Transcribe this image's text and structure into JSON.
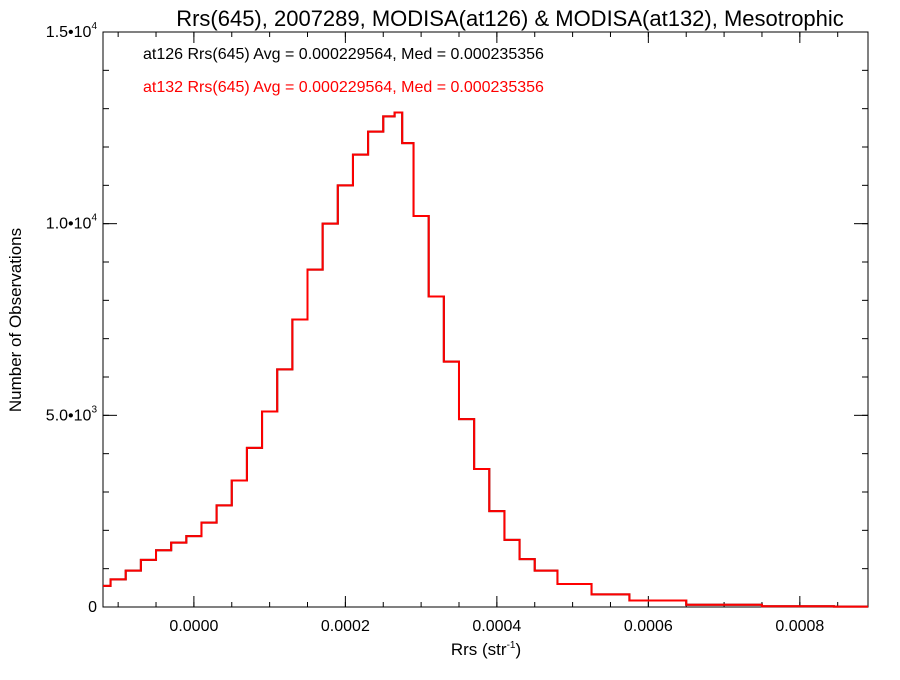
{
  "chart_data": {
    "type": "line",
    "title": "Rrs(645), 2007289, MODISA(at126) & MODISA(at132), Mesotrophic",
    "xlabel": {
      "base": "Rrs (str",
      "sup": "-1",
      "close": ")"
    },
    "ylabel": "Number of Observations",
    "xlim": [
      -0.00012,
      0.00089
    ],
    "ylim": [
      0,
      15000
    ],
    "x_ticks": [
      {
        "value": 0.0,
        "label": "0.0000"
      },
      {
        "value": 0.0002,
        "label": "0.0002"
      },
      {
        "value": 0.0004,
        "label": "0.0004"
      },
      {
        "value": 0.0006,
        "label": "0.0006"
      },
      {
        "value": 0.0008,
        "label": "0.0008"
      }
    ],
    "x_minor_step": 5e-05,
    "y_ticks": [
      {
        "value": 0,
        "base": "0",
        "sup": ""
      },
      {
        "value": 5000,
        "base": "5.0•10",
        "sup": "3"
      },
      {
        "value": 10000,
        "base": "1.0•10",
        "sup": "4"
      },
      {
        "value": 15000,
        "base": "1.5•10",
        "sup": "4"
      }
    ],
    "y_minor_step": 1000,
    "annotations": [
      {
        "text": "at126 Rrs(645) Avg = 0.000229564, Med = 0.000235356",
        "color": "#000000"
      },
      {
        "text": "at132 Rrs(645) Avg = 0.000229564, Med = 0.000235356",
        "color": "#ff0000"
      }
    ],
    "series": [
      {
        "name": "at126",
        "color": "#000000",
        "x": [
          -0.00012,
          -0.0001,
          -8e-05,
          -6e-05,
          -4e-05,
          -2e-05,
          0.0,
          2e-05,
          4e-05,
          6e-05,
          8e-05,
          0.0001,
          0.00012,
          0.00014,
          0.00016,
          0.00018,
          0.0002,
          0.00022,
          0.00024,
          0.00026,
          0.00027,
          0.00028,
          0.0003,
          0.00032,
          0.00034,
          0.00036,
          0.00038,
          0.0004,
          0.00042,
          0.00044,
          0.00046,
          0.0005,
          0.00055,
          0.0006,
          0.0007,
          0.0008,
          0.00089
        ],
        "y": [
          550,
          720,
          950,
          1230,
          1480,
          1680,
          1850,
          2200,
          2650,
          3300,
          4150,
          5100,
          6200,
          7500,
          8800,
          10000,
          11000,
          11800,
          12400,
          12800,
          12900,
          12100,
          10200,
          8100,
          6400,
          4900,
          3600,
          2500,
          1750,
          1250,
          950,
          600,
          330,
          170,
          60,
          20,
          10
        ]
      },
      {
        "name": "at132",
        "color": "#ff0000",
        "x": [
          -0.00012,
          -0.0001,
          -8e-05,
          -6e-05,
          -4e-05,
          -2e-05,
          0.0,
          2e-05,
          4e-05,
          6e-05,
          8e-05,
          0.0001,
          0.00012,
          0.00014,
          0.00016,
          0.00018,
          0.0002,
          0.00022,
          0.00024,
          0.00026,
          0.00027,
          0.00028,
          0.0003,
          0.00032,
          0.00034,
          0.00036,
          0.00038,
          0.0004,
          0.00042,
          0.00044,
          0.00046,
          0.0005,
          0.00055,
          0.0006,
          0.0007,
          0.0008,
          0.00089
        ],
        "y": [
          550,
          720,
          950,
          1230,
          1480,
          1680,
          1850,
          2200,
          2650,
          3300,
          4150,
          5100,
          6200,
          7500,
          8800,
          10000,
          11000,
          11800,
          12400,
          12800,
          12900,
          12100,
          10200,
          8100,
          6400,
          4900,
          3600,
          2500,
          1750,
          1250,
          950,
          600,
          330,
          170,
          60,
          20,
          10
        ]
      }
    ]
  }
}
